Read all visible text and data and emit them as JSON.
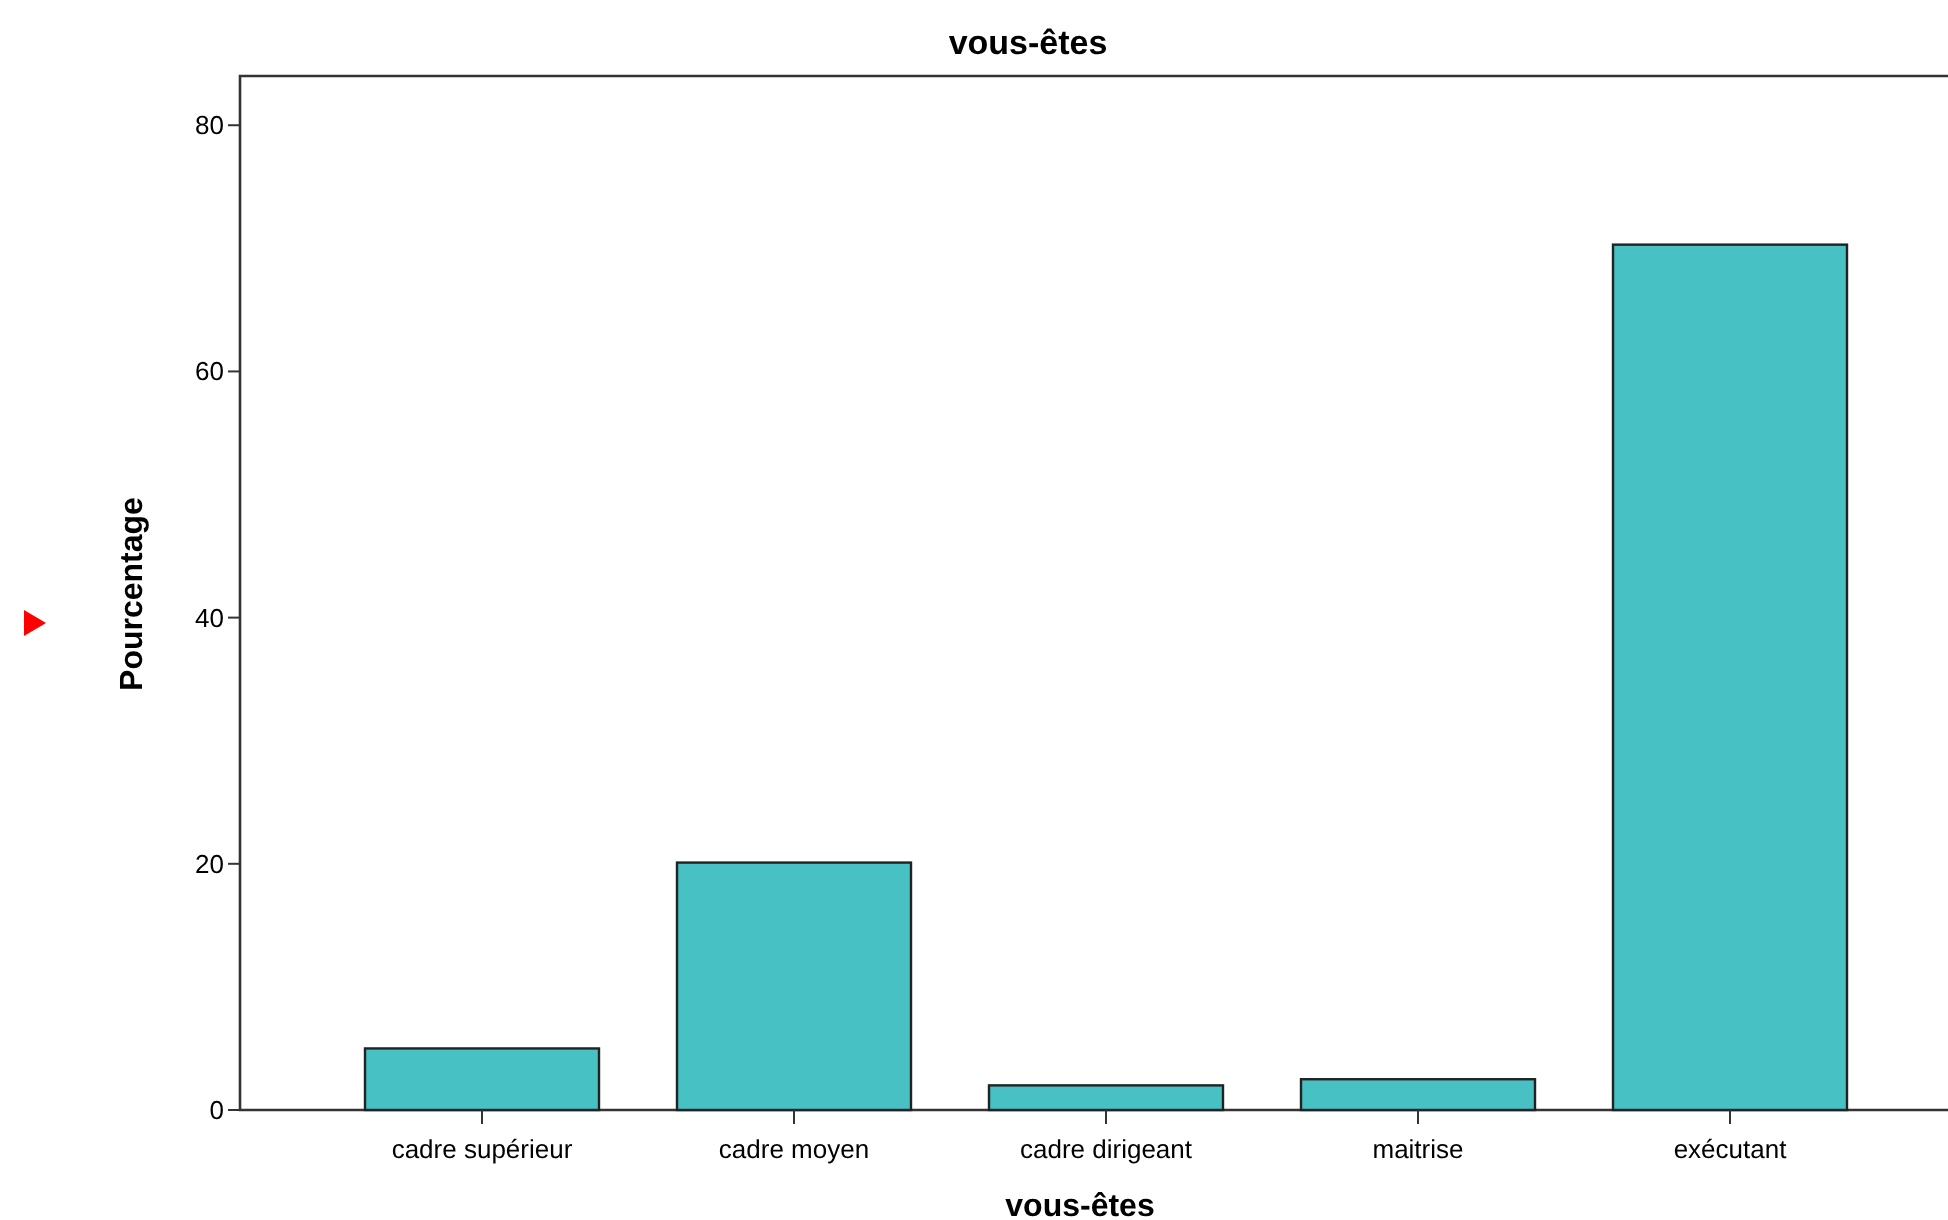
{
  "chart_data": {
    "type": "bar",
    "title": "vous-êtes",
    "xlabel": "vous-êtes",
    "ylabel": "Pourcentage",
    "categories": [
      "cadre supérieur",
      "cadre moyen",
      "cadre dirigeant",
      "maitrise",
      "exécutant"
    ],
    "values": [
      5.0,
      20.1,
      2.0,
      2.5,
      70.3
    ],
    "color": "#48c1c5",
    "ylim": [
      0,
      84
    ],
    "yticks": [
      0,
      20,
      40,
      60,
      80
    ]
  }
}
